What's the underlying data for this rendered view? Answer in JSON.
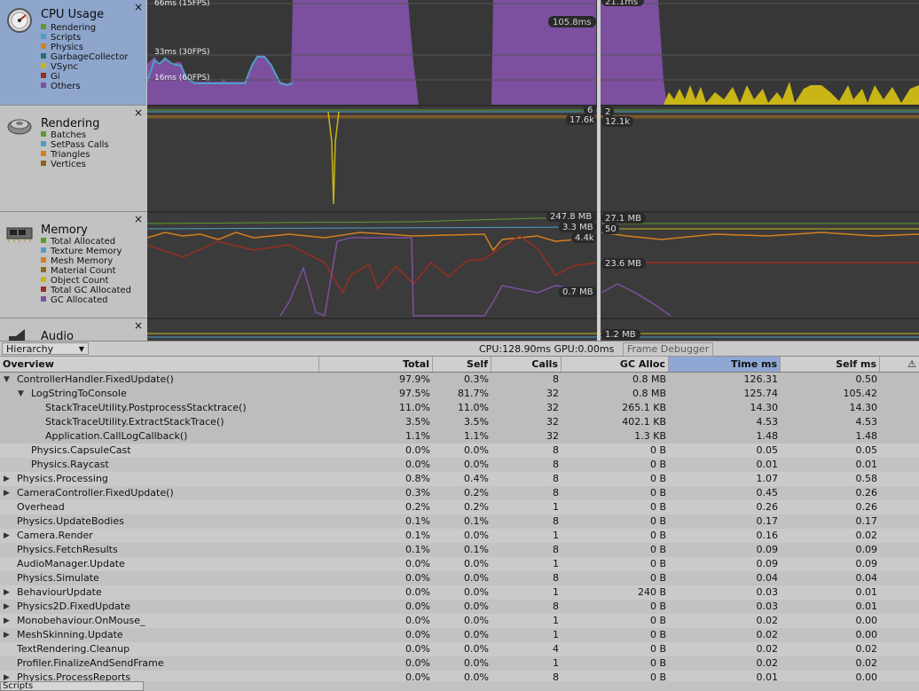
{
  "modules": [
    {
      "id": "cpu",
      "title": "CPU Usage",
      "close": "×",
      "legend": [
        {
          "label": "Rendering",
          "color": "#5d9a2a"
        },
        {
          "label": "Scripts",
          "color": "#4e9ec7"
        },
        {
          "label": "Physics",
          "color": "#d47f1f"
        },
        {
          "label": "GarbageCollector",
          "color": "#2e6c73"
        },
        {
          "label": "VSync",
          "color": "#c9b516"
        },
        {
          "label": "Gi",
          "color": "#9b2d20"
        },
        {
          "label": "Others",
          "color": "#7c4f9f"
        }
      ]
    },
    {
      "id": "rendering",
      "title": "Rendering",
      "close": "×",
      "legend": [
        {
          "label": "Batches",
          "color": "#5d9a2a"
        },
        {
          "label": "SetPass Calls",
          "color": "#4e9ec7"
        },
        {
          "label": "Triangles",
          "color": "#d47f1f"
        },
        {
          "label": "Vertices",
          "color": "#8a6a1a"
        }
      ]
    },
    {
      "id": "memory",
      "title": "Memory",
      "close": "×",
      "legend": [
        {
          "label": "Total Allocated",
          "color": "#5d9a2a"
        },
        {
          "label": "Texture Memory",
          "color": "#4e9ec7"
        },
        {
          "label": "Mesh Memory",
          "color": "#d47f1f"
        },
        {
          "label": "Material Count",
          "color": "#8a6a1a"
        },
        {
          "label": "Object Count",
          "color": "#c9b516"
        },
        {
          "label": "Total GC Allocated",
          "color": "#9b2d20"
        },
        {
          "label": "GC Allocated",
          "color": "#7c4f9f"
        }
      ]
    },
    {
      "id": "audio",
      "title": "Audio",
      "close": "×",
      "legend": []
    }
  ],
  "graph_labels": {
    "fps15": "66ms (15FPS)",
    "fps30": "33ms (30FPS)",
    "fps60": "16ms (60FPS)",
    "cpu_sel_a": "105.8ms",
    "cpu_sel_b": "21.1ms",
    "rend_a": "6",
    "rend_b": "17.6k",
    "rend_c": "2",
    "rend_d": "12.1k",
    "mem_a": "247.8 MB",
    "mem_b": "3.3 MB",
    "mem_c": "4.4k",
    "mem_d": "0.7 MB",
    "mem_e": "27.1 MB",
    "mem_f": "50",
    "mem_g": "23.6 MB",
    "audio_a": "1.2 MB"
  },
  "colors": {
    "graph_bg": "#3a3a3a",
    "others": "#7c4f9f",
    "scripts": "#4e9ec7",
    "vsync": "#c9b516",
    "physics": "#d47f1f"
  },
  "toolbar": {
    "view": "Hierarchy",
    "cpu_gpu": "CPU:128.90ms  GPU:0.00ms",
    "frame_debugger": "Frame Debugger"
  },
  "columns": [
    "Overview",
    "Total",
    "Self",
    "Calls",
    "GC Alloc",
    "Time ms",
    "Self ms"
  ],
  "sorted_column": "Time ms",
  "rows": [
    {
      "name": "ControllerHandler.FixedUpdate()",
      "indent": 0,
      "arrow": "▼",
      "total": "97.9%",
      "self": "0.3%",
      "calls": "8",
      "gc": "0.8 MB",
      "time": "126.31",
      "selfms": "0.50"
    },
    {
      "name": "LogStringToConsole",
      "indent": 1,
      "arrow": "▼",
      "total": "97.5%",
      "self": "81.7%",
      "calls": "32",
      "gc": "0.8 MB",
      "time": "125.74",
      "selfms": "105.42"
    },
    {
      "name": "StackTraceUtility.PostprocessStacktrace()",
      "indent": 2,
      "arrow": "",
      "total": "11.0%",
      "self": "11.0%",
      "calls": "32",
      "gc": "265.1 KB",
      "time": "14.30",
      "selfms": "14.30"
    },
    {
      "name": "StackTraceUtility.ExtractStackTrace()",
      "indent": 2,
      "arrow": "",
      "total": "3.5%",
      "self": "3.5%",
      "calls": "32",
      "gc": "402.1 KB",
      "time": "4.53",
      "selfms": "4.53"
    },
    {
      "name": "Application.CallLogCallback()",
      "indent": 2,
      "arrow": "",
      "total": "1.1%",
      "self": "1.1%",
      "calls": "32",
      "gc": "1.3 KB",
      "time": "1.48",
      "selfms": "1.48"
    },
    {
      "name": "Physics.CapsuleCast",
      "indent": 1,
      "arrow": "",
      "total": "0.0%",
      "self": "0.0%",
      "calls": "8",
      "gc": "0 B",
      "time": "0.05",
      "selfms": "0.05"
    },
    {
      "name": "Physics.Raycast",
      "indent": 1,
      "arrow": "",
      "total": "0.0%",
      "self": "0.0%",
      "calls": "8",
      "gc": "0 B",
      "time": "0.01",
      "selfms": "0.01"
    },
    {
      "name": "Physics.Processing",
      "indent": 0,
      "arrow": "▶",
      "total": "0.8%",
      "self": "0.4%",
      "calls": "8",
      "gc": "0 B",
      "time": "1.07",
      "selfms": "0.58"
    },
    {
      "name": "CameraController.FixedUpdate()",
      "indent": 0,
      "arrow": "▶",
      "total": "0.3%",
      "self": "0.2%",
      "calls": "8",
      "gc": "0 B",
      "time": "0.45",
      "selfms": "0.26"
    },
    {
      "name": "Overhead",
      "indent": 0,
      "arrow": "",
      "total": "0.2%",
      "self": "0.2%",
      "calls": "1",
      "gc": "0 B",
      "time": "0.26",
      "selfms": "0.26"
    },
    {
      "name": "Physics.UpdateBodies",
      "indent": 0,
      "arrow": "",
      "total": "0.1%",
      "self": "0.1%",
      "calls": "8",
      "gc": "0 B",
      "time": "0.17",
      "selfms": "0.17"
    },
    {
      "name": "Camera.Render",
      "indent": 0,
      "arrow": "▶",
      "total": "0.1%",
      "self": "0.0%",
      "calls": "1",
      "gc": "0 B",
      "time": "0.16",
      "selfms": "0.02"
    },
    {
      "name": "Physics.FetchResults",
      "indent": 0,
      "arrow": "",
      "total": "0.1%",
      "self": "0.1%",
      "calls": "8",
      "gc": "0 B",
      "time": "0.09",
      "selfms": "0.09"
    },
    {
      "name": "AudioManager.Update",
      "indent": 0,
      "arrow": "",
      "total": "0.0%",
      "self": "0.0%",
      "calls": "1",
      "gc": "0 B",
      "time": "0.09",
      "selfms": "0.09"
    },
    {
      "name": "Physics.Simulate",
      "indent": 0,
      "arrow": "",
      "total": "0.0%",
      "self": "0.0%",
      "calls": "8",
      "gc": "0 B",
      "time": "0.04",
      "selfms": "0.04"
    },
    {
      "name": "BehaviourUpdate",
      "indent": 0,
      "arrow": "▶",
      "total": "0.0%",
      "self": "0.0%",
      "calls": "1",
      "gc": "240 B",
      "time": "0.03",
      "selfms": "0.01"
    },
    {
      "name": "Physics2D.FixedUpdate",
      "indent": 0,
      "arrow": "▶",
      "total": "0.0%",
      "self": "0.0%",
      "calls": "8",
      "gc": "0 B",
      "time": "0.03",
      "selfms": "0.01"
    },
    {
      "name": "Monobehaviour.OnMouse_",
      "indent": 0,
      "arrow": "▶",
      "total": "0.0%",
      "self": "0.0%",
      "calls": "1",
      "gc": "0 B",
      "time": "0.02",
      "selfms": "0.00"
    },
    {
      "name": "MeshSkinning.Update",
      "indent": 0,
      "arrow": "▶",
      "total": "0.0%",
      "self": "0.0%",
      "calls": "1",
      "gc": "0 B",
      "time": "0.02",
      "selfms": "0.00"
    },
    {
      "name": "TextRendering.Cleanup",
      "indent": 0,
      "arrow": "",
      "total": "0.0%",
      "self": "0.0%",
      "calls": "4",
      "gc": "0 B",
      "time": "0.02",
      "selfms": "0.02"
    },
    {
      "name": "Profiler.FinalizeAndSendFrame",
      "indent": 0,
      "arrow": "",
      "total": "0.0%",
      "self": "0.0%",
      "calls": "1",
      "gc": "0 B",
      "time": "0.02",
      "selfms": "0.02"
    },
    {
      "name": "Physics.ProcessReports",
      "indent": 0,
      "arrow": "▶",
      "total": "0.0%",
      "self": "0.0%",
      "calls": "8",
      "gc": "0 B",
      "time": "0.01",
      "selfms": "0.00"
    }
  ],
  "bottom": {
    "dropdown": "Scripts"
  }
}
